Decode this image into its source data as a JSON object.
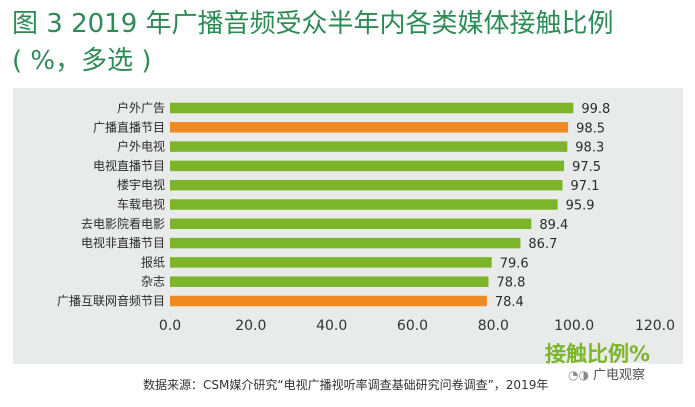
{
  "title": "图 3 2019 年广播音频受众半年内各类媒体接触比例",
  "subtitle": "( %，多选 )",
  "metric_label": "接触比例%",
  "source": "数据来源：CSM媒介研究“电视广播视听率调查基础研究问卷调查”，2019年",
  "watermark": {
    "text": "广电观察",
    "icon": "wechat-icon"
  },
  "colors": {
    "green": "#7cb52a",
    "orange": "#ef8a22",
    "title": "#2e8b57"
  },
  "chart_data": {
    "type": "bar",
    "orientation": "horizontal",
    "title": "图 3 2019 年广播音频受众半年内各类媒体接触比例",
    "categories": [
      "户外广告",
      "广播直播节目",
      "户外电视",
      "电视直播节目",
      "楼宇电视",
      "车载电视",
      "去电影院看电影",
      "电视非直播节目",
      "报纸",
      "杂志",
      "广播互联网音频节目"
    ],
    "values": [
      99.8,
      98.5,
      98.3,
      97.5,
      97.1,
      95.9,
      89.4,
      86.7,
      79.6,
      78.8,
      78.4
    ],
    "value_labels": [
      "99.8",
      "98.5",
      "98.3",
      "97.5",
      "97.1",
      "95.9",
      "89.4",
      "86.7",
      "79.6",
      "78.8",
      "78.4"
    ],
    "highlight": [
      "green",
      "orange",
      "green",
      "green",
      "green",
      "green",
      "green",
      "green",
      "green",
      "green",
      "orange"
    ],
    "xlim": [
      0,
      120
    ],
    "xticks": [
      "0.0",
      "20.0",
      "40.0",
      "60.0",
      "80.0",
      "100.0",
      "120.0"
    ],
    "grid": false,
    "legend": "none"
  }
}
